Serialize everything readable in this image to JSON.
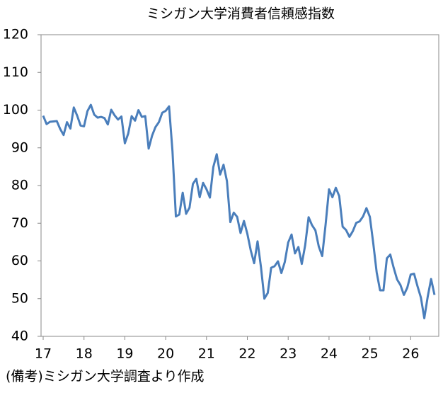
{
  "chart_data": {
    "type": "line",
    "title": "ミシガン大学消費者信頼感指数",
    "note": "(備考)ミシガン大学調査より作成",
    "categories": [
      "17",
      null,
      null,
      null,
      null,
      null,
      null,
      null,
      null,
      null,
      null,
      null,
      "18",
      null,
      null,
      null,
      null,
      null,
      null,
      null,
      null,
      null,
      null,
      null,
      "19",
      null,
      null,
      null,
      null,
      null,
      null,
      null,
      null,
      null,
      null,
      null,
      "20",
      null,
      null,
      null,
      null,
      null,
      null,
      null,
      null,
      null,
      null,
      null,
      "21",
      null,
      null,
      null,
      null,
      null,
      null,
      null,
      null,
      null,
      null,
      null,
      "22",
      null,
      null,
      null,
      null,
      null,
      null,
      null,
      null,
      null,
      null,
      null,
      "23",
      null,
      null,
      null,
      null,
      null,
      null,
      null,
      null,
      null,
      null,
      null,
      "24",
      null,
      null,
      null,
      null,
      null,
      null,
      null,
      null,
      null,
      null,
      null,
      "25",
      null,
      null,
      null,
      null,
      null,
      null,
      null,
      null,
      null,
      null,
      null,
      "26",
      null,
      null,
      null,
      null,
      null,
      null,
      null
    ],
    "series": [
      {
        "color": "#4a7ebb",
        "values": [
          98.5,
          96.3,
          96.9,
          97.0,
          97.1,
          95.0,
          93.4,
          96.8,
          95.1,
          100.7,
          98.5,
          95.9,
          95.7,
          99.7,
          101.4,
          98.8,
          98.0,
          98.2,
          97.9,
          96.2,
          100.1,
          98.6,
          97.5,
          98.3,
          91.2,
          93.8,
          98.4,
          97.2,
          100.0,
          98.2,
          98.4,
          89.8,
          93.2,
          95.5,
          96.8,
          99.3,
          99.8,
          101.0,
          89.1,
          71.8,
          72.3,
          78.1,
          72.5,
          74.1,
          80.4,
          81.8,
          76.9,
          80.7,
          79.0,
          76.8,
          84.9,
          88.3,
          82.9,
          85.5,
          81.2,
          70.3,
          72.8,
          71.7,
          67.4,
          70.6,
          67.2,
          62.8,
          59.4,
          65.2,
          58.4,
          50.0,
          51.5,
          58.2,
          58.6,
          59.9,
          56.8,
          59.7,
          64.9,
          67.0,
          62.0,
          63.7,
          59.2,
          64.2,
          71.6,
          69.5,
          68.1,
          63.8,
          61.3,
          69.7,
          79.0,
          76.9,
          79.4,
          77.2,
          69.1,
          68.2,
          66.4,
          67.9,
          70.1,
          70.5,
          71.8,
          74.0,
          71.7,
          64.7,
          57.0,
          52.2,
          52.2,
          60.7,
          61.7,
          58.2,
          55.1,
          53.6,
          51.0,
          52.9,
          56.4,
          56.6,
          53.3,
          50.3,
          44.8,
          50.5,
          55.2,
          51.0
        ]
      }
    ],
    "ylim": [
      40,
      120
    ],
    "yticks": [
      40,
      50,
      60,
      70,
      80,
      90,
      100,
      110,
      120
    ],
    "grid": false
  }
}
